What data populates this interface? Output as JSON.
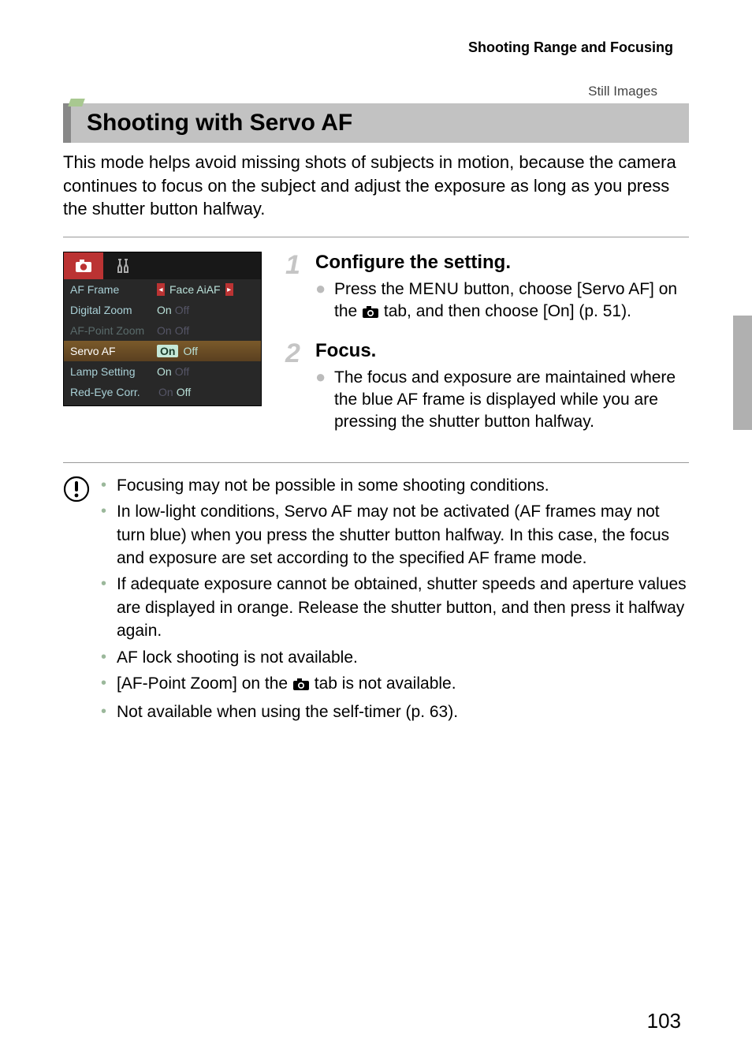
{
  "breadcrumb": "Shooting Range and Focusing",
  "category_tag": "Still Images",
  "title": "Shooting with Servo AF",
  "intro": "This mode helps avoid missing shots of subjects in motion, because the camera continues to focus on the subject and adjust the exposure as long as you press the shutter button halfway.",
  "menu_panel": {
    "rows": [
      {
        "label": "AF Frame",
        "value_left_arrow": true,
        "value": "Face AiAF",
        "value_right_arrow": true,
        "disabled": false
      },
      {
        "label": "Digital Zoom",
        "value_on": "On",
        "value_off": "Off",
        "state": "on",
        "disabled": false
      },
      {
        "label": "AF-Point Zoom",
        "value_on": "On",
        "value_off": "Off",
        "state": "on",
        "disabled": true
      },
      {
        "label": "Servo AF",
        "value_on": "On",
        "value_off": "Off",
        "state": "on",
        "highlight": true,
        "disabled": false
      },
      {
        "label": "Lamp Setting",
        "value_on": "On",
        "value_off": "Off",
        "state": "on",
        "disabled": false
      },
      {
        "label": "Red-Eye Corr.",
        "value_on": "On",
        "value_off": "Off",
        "state": "off",
        "disabled": false
      }
    ]
  },
  "steps": [
    {
      "num": "1",
      "title": "Configure the setting.",
      "bullets": [
        {
          "pre": "Press the ",
          "icon_word": "MENU",
          "mid": " button, choose [Servo AF] on the ",
          "cam_icon": true,
          "post": " tab, and then choose [On] (p. 51)."
        }
      ]
    },
    {
      "num": "2",
      "title": "Focus.",
      "bullets": [
        {
          "text": "The focus and exposure are maintained where the blue AF frame is displayed while you are pressing the shutter button halfway."
        }
      ]
    }
  ],
  "warnings": [
    "Focusing may not be possible in some shooting conditions.",
    "In low-light conditions, Servo AF may not be activated (AF frames may not turn blue) when you press the shutter button halfway. In this case, the focus and exposure are set according to the specified AF frame mode.",
    "If adequate exposure cannot be obtained, shutter speeds and aperture values are displayed in orange. Release the shutter button, and then press it halfway again.",
    "AF lock shooting is not available.",
    {
      "pre": "[AF-Point Zoom] on the ",
      "cam_icon": true,
      "post": " tab is not available."
    },
    "Not available when using the self-timer (p. 63)."
  ],
  "page_number": "103",
  "colors": {
    "titlebar_bg": "#c2c2c2",
    "titlebar_border": "#888888",
    "accent_tab": "#b33333",
    "menu_bg": "#282828",
    "menu_text": "#a9d0d6",
    "highlight_row": "#6a4a22",
    "warn_bullet": "#9bb89b"
  }
}
